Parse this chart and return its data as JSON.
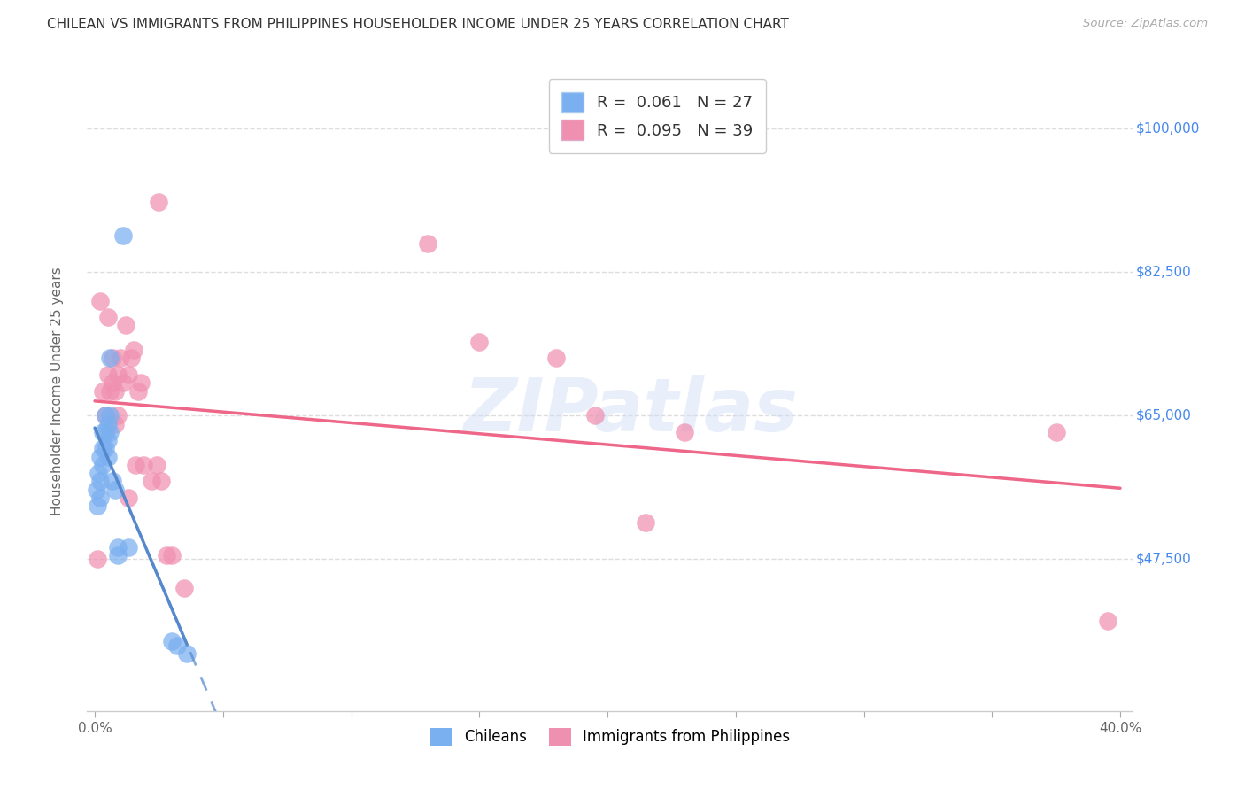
{
  "title": "CHILEAN VS IMMIGRANTS FROM PHILIPPINES HOUSEHOLDER INCOME UNDER 25 YEARS CORRELATION CHART",
  "source": "Source: ZipAtlas.com",
  "ylabel": "Householder Income Under 25 years",
  "xlim": [
    -0.003,
    0.405
  ],
  "ylim": [
    29000,
    107000
  ],
  "xtick_positions": [
    0.0,
    0.05,
    0.1,
    0.15,
    0.2,
    0.25,
    0.3,
    0.35,
    0.4
  ],
  "ytick_values": [
    47500,
    65000,
    82500,
    100000
  ],
  "ytick_labels": [
    "$47,500",
    "$65,000",
    "$82,500",
    "$100,000"
  ],
  "background_color": "#ffffff",
  "grid_color": "#dddddd",
  "watermark": "ZIPatlas",
  "legend_R1": "0.061",
  "legend_N1": "27",
  "legend_R2": "0.095",
  "legend_N2": "39",
  "chilean_color": "#7aaff0",
  "philippines_color": "#f090b0",
  "chilean_line_color": "#5588cc",
  "philippines_line_color": "#ee6688",
  "chileans_label": "Chileans",
  "philippines_label": "Immigrants from Philippines",
  "chilean_x": [
    0.0008,
    0.001,
    0.0015,
    0.002,
    0.002,
    0.002,
    0.003,
    0.003,
    0.003,
    0.004,
    0.004,
    0.004,
    0.005,
    0.005,
    0.005,
    0.006,
    0.006,
    0.006,
    0.007,
    0.008,
    0.009,
    0.009,
    0.011,
    0.013,
    0.03,
    0.032,
    0.036
  ],
  "chilean_y": [
    56000,
    54000,
    58000,
    60000,
    57000,
    55000,
    63000,
    61000,
    59000,
    65000,
    63000,
    61000,
    64000,
    62000,
    60000,
    72000,
    65000,
    63000,
    57000,
    56000,
    49000,
    48000,
    87000,
    49000,
    37500,
    37000,
    36000
  ],
  "philippines_x": [
    0.001,
    0.002,
    0.003,
    0.004,
    0.005,
    0.005,
    0.006,
    0.007,
    0.007,
    0.008,
    0.008,
    0.009,
    0.009,
    0.01,
    0.011,
    0.012,
    0.013,
    0.013,
    0.014,
    0.015,
    0.016,
    0.017,
    0.018,
    0.019,
    0.022,
    0.024,
    0.025,
    0.026,
    0.028,
    0.03,
    0.035,
    0.13,
    0.15,
    0.18,
    0.195,
    0.215,
    0.23,
    0.375,
    0.395
  ],
  "philippines_y": [
    47500,
    79000,
    68000,
    65000,
    77000,
    70000,
    68000,
    72000,
    69000,
    64000,
    68000,
    70000,
    65000,
    72000,
    69000,
    76000,
    70000,
    55000,
    72000,
    73000,
    59000,
    68000,
    69000,
    59000,
    57000,
    59000,
    91000,
    57000,
    48000,
    48000,
    44000,
    86000,
    74000,
    72000,
    65000,
    52000,
    63000,
    63000,
    40000
  ],
  "chilean_line_x_start": 0.0,
  "chilean_line_x_end": 0.036,
  "philippines_line_x_start": 0.0,
  "philippines_line_x_end": 0.4
}
